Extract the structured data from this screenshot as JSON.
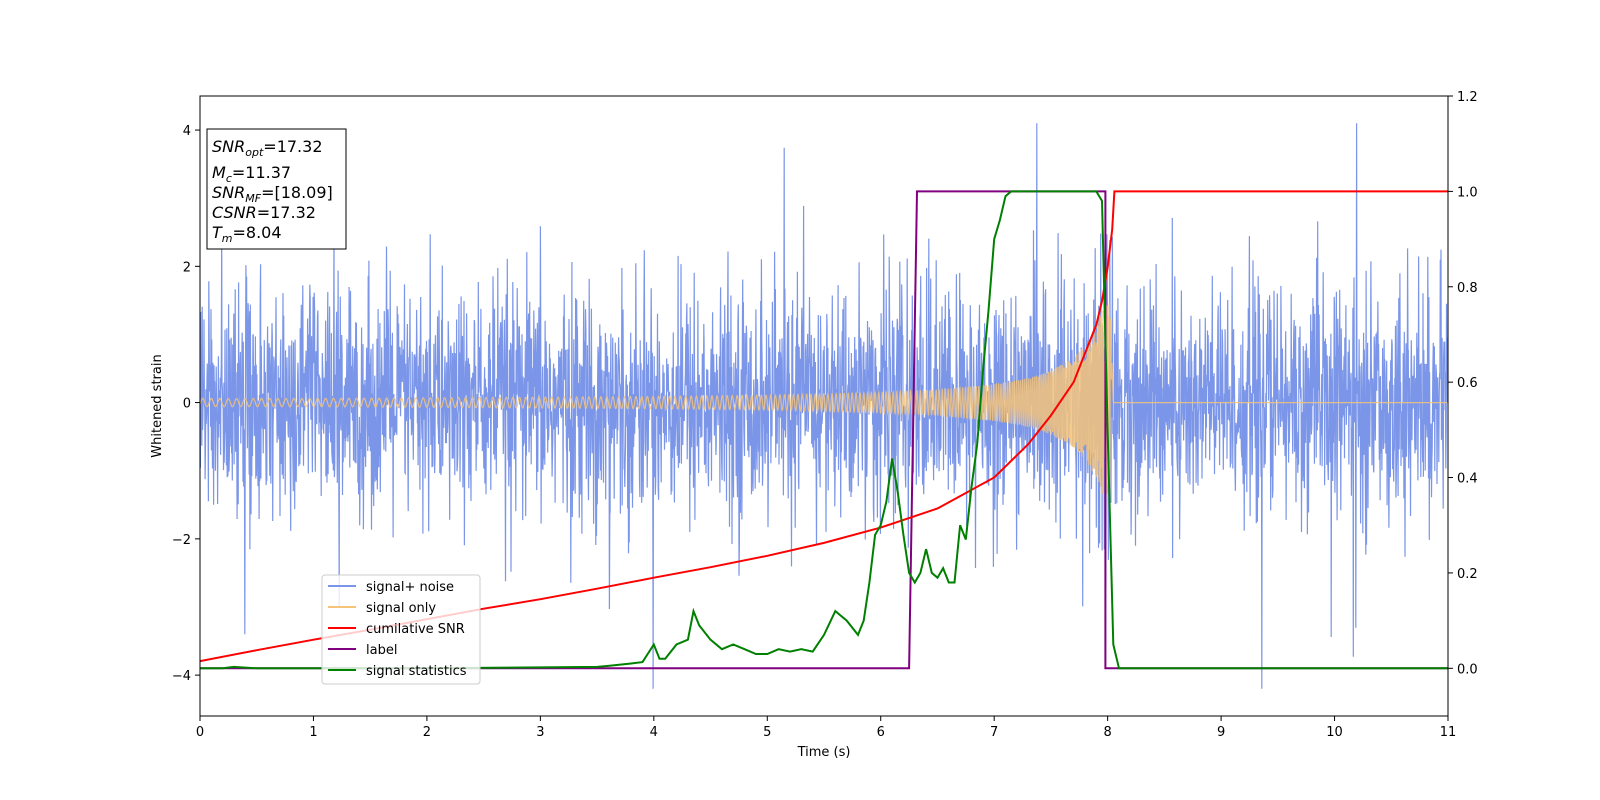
{
  "chart_data": {
    "type": "line",
    "xlabel": "Time (s)",
    "ylabel": "Whitened strain",
    "xlim": [
      0,
      11
    ],
    "ylim": [
      -4.6,
      4.5
    ],
    "y2lim": [
      -0.1,
      1.2
    ],
    "x_ticks": [
      "0",
      "1",
      "2",
      "3",
      "4",
      "5",
      "6",
      "7",
      "8",
      "9",
      "10",
      "11"
    ],
    "y_ticks": [
      "−4",
      "−2",
      "0",
      "2",
      "4"
    ],
    "y2_ticks": [
      "0.0",
      "0.2",
      "0.4",
      "0.6",
      "0.8",
      "1.0",
      "1.2"
    ],
    "grid": false,
    "legend_position": "lower-left",
    "info_box": {
      "snr_opt": {
        "base": "SNR",
        "sub": "opt",
        "value": "=17.32"
      },
      "mc": {
        "base": "M",
        "sub": "c",
        "value": "=11.37"
      },
      "snr_mf": {
        "base": "SNR",
        "sub": "MF",
        "value": "=[18.09]"
      },
      "csnr": {
        "base": "CSNR",
        "value": "=17.32"
      },
      "tm": {
        "base": "T",
        "sub": "m",
        "value": "=8.04"
      }
    },
    "series": [
      {
        "name": "signal+ noise",
        "axis": "left",
        "color": "#7b96e8",
        "noise_std": 0.82,
        "x_range": [
          0,
          11
        ]
      },
      {
        "name": "signal only",
        "axis": "left",
        "color": "#f5c37a",
        "envelope": {
          "x": [
            0,
            1,
            2,
            3,
            4,
            5,
            6,
            6.5,
            7,
            7.3,
            7.5,
            7.7,
            7.85,
            7.95,
            8.02,
            8.05,
            11
          ],
          "y": [
            0.06,
            0.06,
            0.07,
            0.08,
            0.09,
            0.11,
            0.15,
            0.19,
            0.27,
            0.36,
            0.47,
            0.66,
            0.95,
            1.35,
            1.5,
            0,
            0
          ]
        }
      },
      {
        "name": "cumilative SNR",
        "axis": "right",
        "color": "#ff0000",
        "x": [
          0,
          0.5,
          1,
          1.5,
          2,
          2.5,
          3,
          3.5,
          4,
          4.5,
          5,
          5.5,
          6,
          6.5,
          7,
          7.3,
          7.5,
          7.7,
          7.8,
          7.9,
          7.95,
          8.0,
          8.04,
          8.06,
          11
        ],
        "y": [
          0.015,
          0.038,
          0.06,
          0.081,
          0.103,
          0.125,
          0.145,
          0.167,
          0.19,
          0.212,
          0.236,
          0.263,
          0.295,
          0.335,
          0.4,
          0.47,
          0.53,
          0.6,
          0.66,
          0.72,
          0.77,
          0.84,
          0.92,
          1.0,
          1.0
        ]
      },
      {
        "name": "label",
        "axis": "right",
        "color": "#800080",
        "x": [
          0,
          6.25,
          6.32,
          7.98,
          7.98,
          11
        ],
        "y": [
          0,
          0,
          1,
          1,
          0,
          0
        ]
      },
      {
        "name": "signal statistics",
        "axis": "right",
        "color": "#008000",
        "x": [
          0,
          0.2,
          0.3,
          0.5,
          1,
          2,
          3,
          3.5,
          3.6,
          3.8,
          3.9,
          4.0,
          4.05,
          4.1,
          4.2,
          4.3,
          4.35,
          4.4,
          4.5,
          4.6,
          4.7,
          4.8,
          4.9,
          5.0,
          5.1,
          5.2,
          5.3,
          5.4,
          5.5,
          5.6,
          5.7,
          5.8,
          5.85,
          5.9,
          5.95,
          6.0,
          6.05,
          6.1,
          6.15,
          6.2,
          6.25,
          6.3,
          6.35,
          6.4,
          6.45,
          6.5,
          6.55,
          6.6,
          6.65,
          6.7,
          6.75,
          6.8,
          6.85,
          6.9,
          6.95,
          7.0,
          7.05,
          7.1,
          7.15,
          7.2,
          7.3,
          7.5,
          7.7,
          7.9,
          7.95,
          8.0,
          8.05,
          8.1,
          8.15,
          11
        ],
        "y": [
          0,
          0,
          0.003,
          0,
          0,
          0,
          0.002,
          0.003,
          0.005,
          0.01,
          0.013,
          0.05,
          0.02,
          0.02,
          0.05,
          0.06,
          0.12,
          0.09,
          0.06,
          0.04,
          0.05,
          0.04,
          0.03,
          0.03,
          0.04,
          0.035,
          0.04,
          0.035,
          0.07,
          0.12,
          0.1,
          0.07,
          0.1,
          0.18,
          0.28,
          0.3,
          0.35,
          0.44,
          0.37,
          0.28,
          0.2,
          0.18,
          0.2,
          0.25,
          0.2,
          0.19,
          0.21,
          0.18,
          0.18,
          0.3,
          0.27,
          0.38,
          0.47,
          0.62,
          0.75,
          0.9,
          0.94,
          0.99,
          1.0,
          1.0,
          1.0,
          1.0,
          1.0,
          1.0,
          0.98,
          0.5,
          0.05,
          0.0,
          0.0,
          0.0
        ]
      }
    ]
  }
}
